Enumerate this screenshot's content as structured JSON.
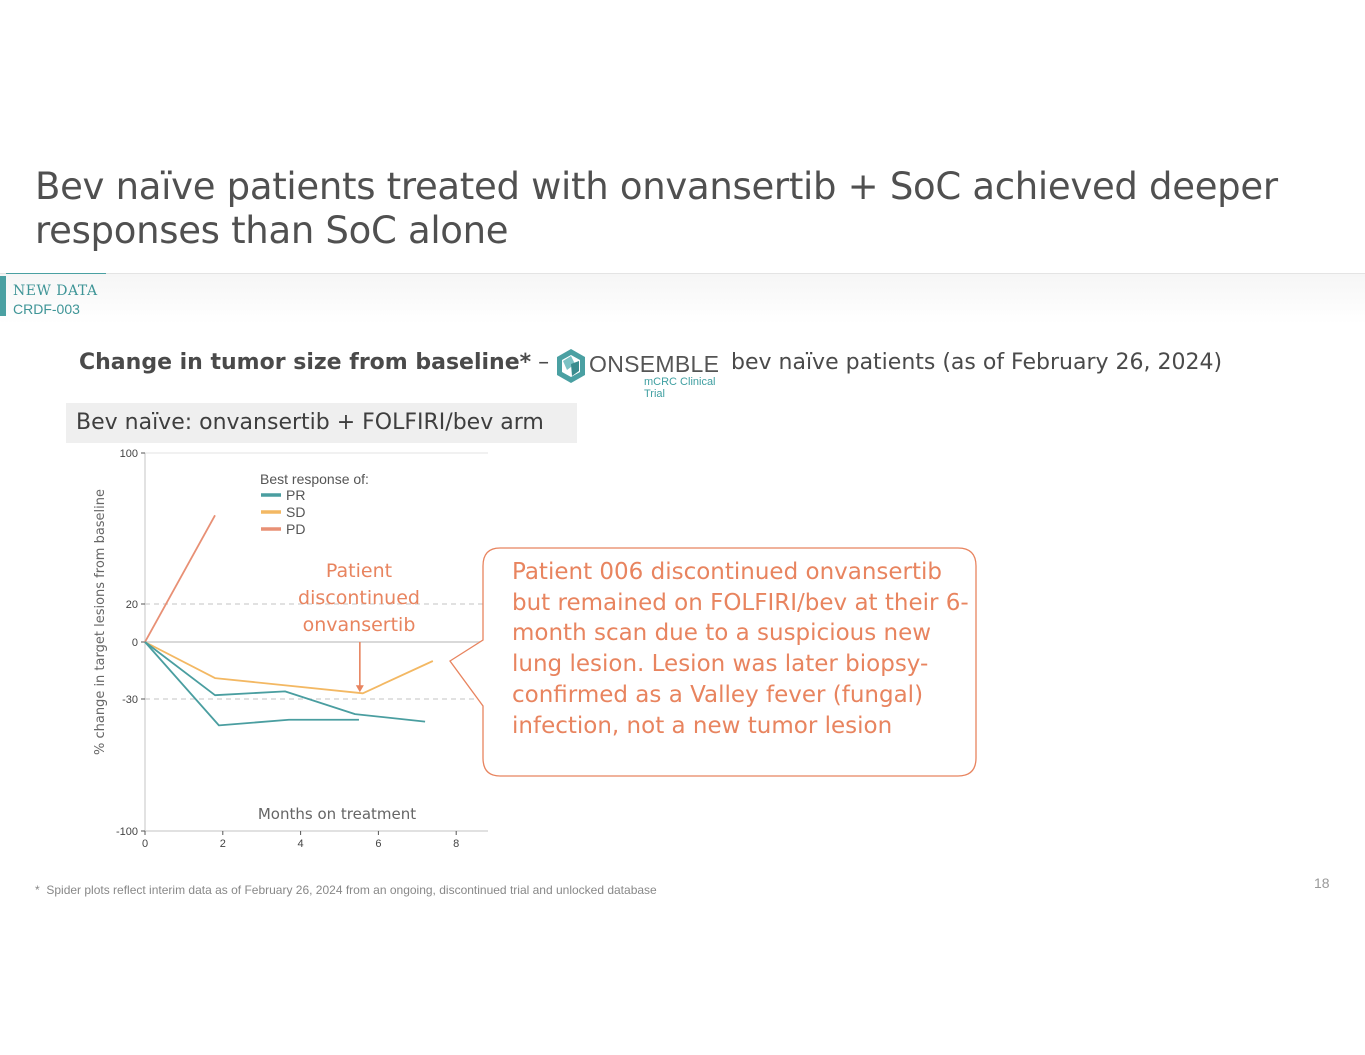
{
  "slide": {
    "title": "Bev naïve patients treated with onvansertib + SoC achieved deeper responses than SoC alone",
    "tag_new": "NEW DATA",
    "tag_code": "CRDF-003",
    "subtitle_bold": "Change in tumor size from baseline*",
    "subtitle_dash": " –",
    "logo_word": "ONSEMBLE",
    "logo_sub": "mCRC Clinical Trial",
    "subtitle_rest": "bev naïve patients (as of February 26, 2024)",
    "arm_label": "Bev naïve: onvansertib + FOLFIRI/bev arm",
    "callout_text": "Patient 006 discontinued onvansertib but remained on FOLFIRI/bev at their 6-month scan due to a suspicious new lung lesion. Lesion was later biopsy-confirmed as a Valley fever (fungal) infection, not a new tumor lesion",
    "footnote_star": "*",
    "footnote": "Spider plots reflect interim data as of February 26, 2024 from an ongoing, discontinued trial and unlocked database",
    "page_number": "18",
    "colors": {
      "teal": "#4aa0a2",
      "orange": "#e8845f",
      "pr": "#4a9ea0",
      "sd": "#f3b863",
      "pd": "#e89075"
    }
  },
  "chart_data": {
    "type": "line",
    "title": "Bev naïve: onvansertib + FOLFIRI/bev arm",
    "xlabel": "Months on treatment",
    "ylabel": "% change in target lesions from baseline",
    "xlim": [
      0,
      8.5
    ],
    "ylim": [
      -100,
      100
    ],
    "xticks": [
      0,
      2,
      4,
      6,
      8
    ],
    "yticks": [
      100,
      20,
      0,
      -30,
      -100
    ],
    "reference_lines": [
      20,
      -30
    ],
    "legend_title": "Best response of:",
    "legend": [
      {
        "label": "PR",
        "color": "#4a9ea0"
      },
      {
        "label": "SD",
        "color": "#f3b863"
      },
      {
        "label": "PD",
        "color": "#e89075"
      }
    ],
    "series": [
      {
        "name": "PD",
        "response": "PD",
        "color": "#e89075",
        "x": [
          0,
          1.8
        ],
        "y": [
          0,
          67
        ]
      },
      {
        "name": "SD",
        "response": "SD",
        "color": "#f3b863",
        "x": [
          0,
          1.8,
          5.6,
          7.4
        ],
        "y": [
          0,
          -19,
          -27,
          -10
        ]
      },
      {
        "name": "PR patient 1",
        "response": "PR",
        "color": "#4a9ea0",
        "x": [
          0,
          1.8,
          3.6,
          5.4,
          7.2
        ],
        "y": [
          0,
          -28,
          -26,
          -38,
          -42
        ]
      },
      {
        "name": "PR patient 2",
        "response": "PR",
        "color": "#4a9ea0",
        "x": [
          0,
          1.9,
          3.7,
          5.5
        ],
        "y": [
          0,
          -44,
          -41,
          -41
        ]
      }
    ],
    "annotations": [
      {
        "text_lines": [
          "Patient",
          "discontinued",
          "onvansertib"
        ],
        "arrow_x": 5.6,
        "arrow_y": -27
      }
    ]
  }
}
